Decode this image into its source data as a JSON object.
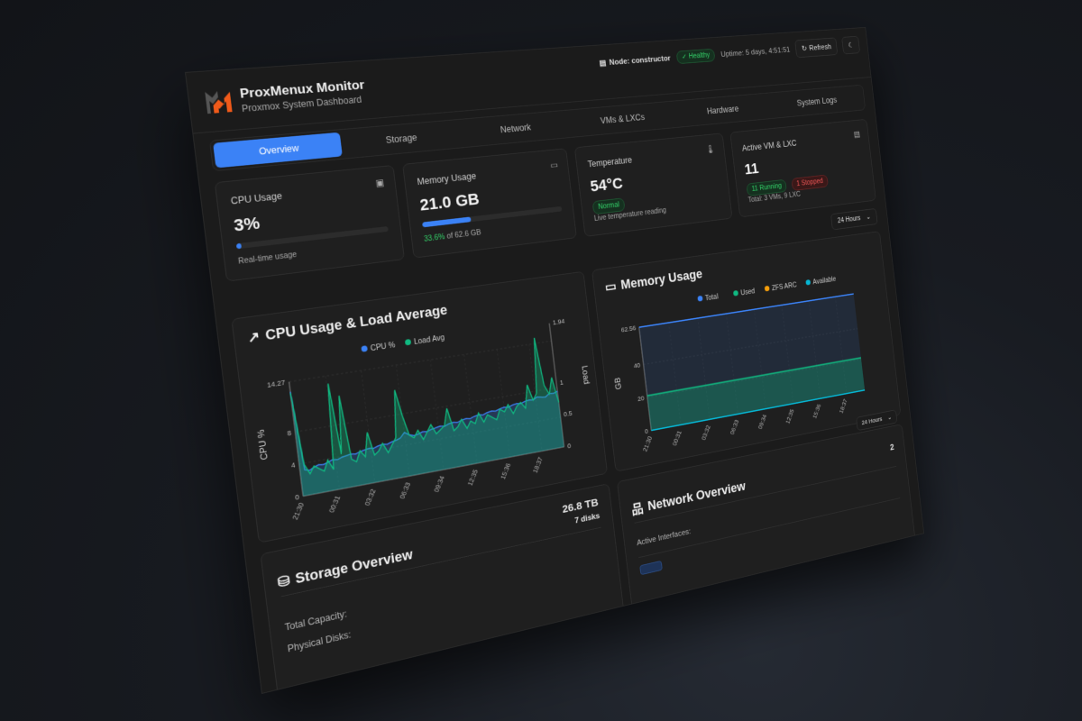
{
  "header": {
    "title": "ProxMenux Monitor",
    "subtitle": "Proxmox System Dashboard",
    "node_label": "Node: constructor",
    "health": "Healthy",
    "uptime": "Uptime: 5 days, 4:51:51",
    "refresh": "Refresh",
    "theme_icon": "moon-icon"
  },
  "tabs": [
    "Overview",
    "Storage",
    "Network",
    "VMs & LXCs",
    "Hardware",
    "System Logs"
  ],
  "active_tab": "Overview",
  "cards": {
    "cpu": {
      "title": "CPU Usage",
      "value": "3%",
      "percent": 3,
      "sub": "Real-time usage",
      "icon": "cpu-icon"
    },
    "memory": {
      "title": "Memory Usage",
      "value": "21.0 GB",
      "percent": 33.6,
      "pct_text": "33.6%",
      "of_text": " of 62.6 GB",
      "icon": "memory-icon"
    },
    "temperature": {
      "title": "Temperature",
      "value": "54°C",
      "status": "Normal",
      "sub": "Live temperature reading",
      "icon": "thermometer-icon"
    },
    "vms": {
      "title": "Active VM & LXC",
      "value": "11",
      "running": "11 Running",
      "stopped": "1 Stopped",
      "sub": "Total: 3 VMs, 9 LXC",
      "icon": "server-icon"
    }
  },
  "time_range": "24 Hours",
  "colors": {
    "accent": "#3b82f6",
    "green": "#10b981",
    "orange": "#f59e0b",
    "cyan": "#06b6d4",
    "healthy": "#34d36a",
    "stopped": "#f25757"
  },
  "chart_data": [
    {
      "type": "line",
      "title": "CPU Usage & Load Average",
      "ylabel": "CPU %",
      "y2label": "Load",
      "xticks": [
        "21:30",
        "00:31",
        "03:32",
        "06:33",
        "09:34",
        "12:35",
        "15:36",
        "18:37"
      ],
      "ylim": [
        0,
        14.27
      ],
      "yticks": [
        0,
        4,
        8,
        14.27
      ],
      "y2lim": [
        0,
        1.94
      ],
      "y2ticks": [
        0,
        0.5,
        1,
        1.94
      ],
      "grid": true,
      "legend": "top",
      "series": [
        {
          "name": "CPU %",
          "color": "#3b82f6",
          "values": [
            13,
            3.2,
            3,
            3.3,
            3.5,
            3.4,
            3.6,
            3.8,
            3.7,
            3.9,
            4,
            4.1,
            4,
            4.2,
            4.3,
            4.4,
            4.3,
            4.5,
            4.6,
            4.5,
            4.7,
            4.8,
            5,
            5.6,
            5.2,
            5,
            5.1,
            5.3,
            5.2,
            5.4,
            5.5,
            5.6,
            5.5,
            5.7,
            5.8,
            5.7,
            5.9,
            6,
            5.9,
            6.1,
            6.2,
            6.1,
            6.3,
            6.4,
            6.3,
            6.5,
            6.6,
            6.5,
            6.7,
            6.8,
            6.7,
            6.9,
            7,
            6.9,
            7.2,
            7.1,
            7,
            7.4,
            7.3,
            7.5
          ]
        },
        {
          "name": "Load Avg",
          "color": "#10b981",
          "axis": "right",
          "values": [
            1.5,
            0.45,
            0.3,
            0.4,
            0.35,
            0.3,
            0.45,
            0.3,
            1.55,
            0.5,
            1.35,
            0.4,
            0.35,
            0.5,
            0.4,
            0.75,
            0.4,
            0.45,
            0.55,
            0.4,
            0.5,
            0.6,
            1.3,
            0.9,
            0.6,
            0.55,
            0.65,
            0.5,
            0.6,
            0.7,
            0.55,
            0.6,
            0.65,
            0.9,
            0.55,
            0.6,
            0.7,
            0.55,
            0.65,
            0.6,
            0.75,
            0.6,
            0.7,
            0.65,
            0.6,
            0.75,
            0.7,
            0.8,
            0.65,
            0.75,
            0.8,
            0.7,
            1.05,
            0.8,
            0.9,
            1.75,
            1.0,
            0.85,
            1.1,
            0.7
          ]
        }
      ]
    },
    {
      "type": "area",
      "title": "Memory Usage",
      "ylabel": "GB",
      "xticks": [
        "21:30",
        "00:31",
        "03:32",
        "06:33",
        "09:34",
        "12:35",
        "15:36",
        "18:37"
      ],
      "ylim": [
        0,
        62.56
      ],
      "yticks": [
        0,
        20,
        40,
        62.56
      ],
      "grid": true,
      "legend": "top",
      "series": [
        {
          "name": "Total",
          "color": "#3b82f6",
          "values": [
            62.56,
            62.56,
            62.56,
            62.56,
            62.56,
            62.56,
            62.56,
            62.56
          ]
        },
        {
          "name": "Used",
          "color": "#10b981",
          "values": [
            21,
            21,
            21,
            21,
            21,
            21,
            21,
            21
          ]
        },
        {
          "name": "ZFS ARC",
          "color": "#f59e0b",
          "values": [
            0,
            0,
            0,
            0,
            0,
            0,
            0,
            0
          ]
        },
        {
          "name": "Available",
          "color": "#06b6d4",
          "values": [
            0,
            0,
            0,
            0,
            0,
            0,
            0,
            0
          ]
        }
      ]
    }
  ],
  "storage": {
    "title": "Storage Overview",
    "capacity": "26.8 TB",
    "disks": "7 disks",
    "total_label": "Total Capacity:",
    "disks_label": "Physical Disks:"
  },
  "network": {
    "title": "Network Overview",
    "count": "2",
    "active_label": "Active Interfaces:",
    "range": "24 Hours"
  }
}
